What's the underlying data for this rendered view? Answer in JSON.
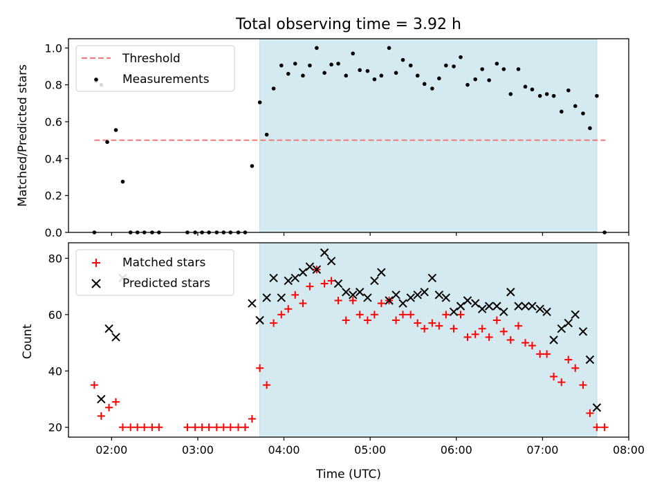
{
  "chart_data": [
    {
      "type": "scatter",
      "title": "Total observing time = 3.92 h",
      "xlabel": "",
      "ylabel": "Matched/Predicted stars",
      "xlim": [
        1.5,
        8.0
      ],
      "ylim": [
        0.0,
        1.05
      ],
      "x_unit": "hours UTC",
      "yticks": [
        0.0,
        0.2,
        0.4,
        0.6,
        0.8,
        1.0
      ],
      "ytick_labels": [
        "0.0",
        "0.2",
        "0.4",
        "0.6",
        "0.8",
        "1.0"
      ],
      "shaded_region": {
        "x": [
          3.72,
          7.63
        ],
        "color": "#d4eaf0"
      },
      "threshold": {
        "name": "Threshold",
        "y": 0.5,
        "x": [
          1.8,
          7.73
        ],
        "color": "#f08080",
        "style": "dashed"
      },
      "legend": [
        "Threshold",
        "Measurements"
      ],
      "legend_position": "upper left",
      "series": [
        {
          "name": "Measurements",
          "marker": "dot",
          "color": "#000000",
          "points": [
            [
              1.8,
              0.0
            ],
            [
              1.82,
              0.82
            ],
            [
              1.88,
              0.8
            ],
            [
              1.95,
              0.49
            ],
            [
              2.05,
              0.555
            ],
            [
              2.13,
              0.275
            ],
            [
              2.22,
              0.0
            ],
            [
              2.3,
              0.0
            ],
            [
              2.38,
              0.0
            ],
            [
              2.47,
              0.0
            ],
            [
              2.55,
              0.0
            ],
            [
              2.88,
              0.0
            ],
            [
              2.97,
              0.0
            ],
            [
              3.05,
              0.0
            ],
            [
              3.13,
              0.0
            ],
            [
              3.22,
              0.0
            ],
            [
              3.3,
              0.0
            ],
            [
              3.38,
              0.0
            ],
            [
              3.47,
              0.0
            ],
            [
              3.55,
              0.0
            ],
            [
              3.63,
              0.36
            ],
            [
              3.72,
              0.705
            ],
            [
              3.8,
              0.53
            ],
            [
              3.88,
              0.78
            ],
            [
              3.97,
              0.905
            ],
            [
              4.05,
              0.86
            ],
            [
              4.13,
              0.915
            ],
            [
              4.22,
              0.85
            ],
            [
              4.3,
              0.905
            ],
            [
              4.38,
              1.0
            ],
            [
              4.47,
              0.865
            ],
            [
              4.55,
              0.91
            ],
            [
              4.63,
              0.915
            ],
            [
              4.72,
              0.85
            ],
            [
              4.8,
              0.97
            ],
            [
              4.88,
              0.88
            ],
            [
              4.97,
              0.875
            ],
            [
              5.05,
              0.83
            ],
            [
              5.13,
              0.85
            ],
            [
              5.22,
              1.0
            ],
            [
              5.3,
              0.865
            ],
            [
              5.38,
              0.935
            ],
            [
              5.47,
              0.905
            ],
            [
              5.55,
              0.85
            ],
            [
              5.63,
              0.805
            ],
            [
              5.72,
              0.78
            ],
            [
              5.8,
              0.835
            ],
            [
              5.88,
              0.905
            ],
            [
              5.97,
              0.9
            ],
            [
              6.05,
              0.95
            ],
            [
              6.13,
              0.8
            ],
            [
              6.22,
              0.83
            ],
            [
              6.3,
              0.885
            ],
            [
              6.38,
              0.825
            ],
            [
              6.47,
              0.915
            ],
            [
              6.55,
              0.885
            ],
            [
              6.63,
              0.75
            ],
            [
              6.72,
              0.885
            ],
            [
              6.8,
              0.79
            ],
            [
              6.88,
              0.775
            ],
            [
              6.97,
              0.74
            ],
            [
              7.05,
              0.75
            ],
            [
              7.13,
              0.74
            ],
            [
              7.22,
              0.655
            ],
            [
              7.3,
              0.77
            ],
            [
              7.38,
              0.685
            ],
            [
              7.47,
              0.645
            ],
            [
              7.55,
              0.565
            ],
            [
              7.63,
              0.74
            ],
            [
              7.72,
              0.0
            ]
          ]
        }
      ]
    },
    {
      "type": "scatter",
      "title": "",
      "xlabel": "Time (UTC)",
      "ylabel": "Count",
      "xlim": [
        1.5,
        8.0
      ],
      "ylim": [
        16.5,
        85.5
      ],
      "x_unit": "hours UTC",
      "xticks": [
        2,
        3,
        4,
        5,
        6,
        7,
        8
      ],
      "xtick_labels": [
        "02:00",
        "03:00",
        "04:00",
        "05:00",
        "06:00",
        "07:00",
        "08:00"
      ],
      "yticks": [
        20,
        40,
        60,
        80
      ],
      "ytick_labels": [
        "20",
        "40",
        "60",
        "80"
      ],
      "shaded_region": {
        "x": [
          3.72,
          7.63
        ],
        "color": "#d4eaf0"
      },
      "legend": [
        "Matched stars",
        "Predicted stars"
      ],
      "legend_position": "upper left",
      "series": [
        {
          "name": "Matched stars",
          "marker": "plus",
          "color": "#ff0000",
          "points": [
            [
              1.8,
              35
            ],
            [
              1.88,
              24
            ],
            [
              1.97,
              27
            ],
            [
              2.05,
              29
            ],
            [
              2.13,
              20
            ],
            [
              2.22,
              20
            ],
            [
              2.3,
              20
            ],
            [
              2.38,
              20
            ],
            [
              2.47,
              20
            ],
            [
              2.55,
              20
            ],
            [
              2.88,
              20
            ],
            [
              2.97,
              20
            ],
            [
              3.05,
              20
            ],
            [
              3.13,
              20
            ],
            [
              3.22,
              20
            ],
            [
              3.3,
              20
            ],
            [
              3.38,
              20
            ],
            [
              3.47,
              20
            ],
            [
              3.55,
              20
            ],
            [
              3.63,
              23
            ],
            [
              3.72,
              41
            ],
            [
              3.8,
              35
            ],
            [
              3.88,
              57
            ],
            [
              3.97,
              60
            ],
            [
              4.05,
              62
            ],
            [
              4.13,
              67
            ],
            [
              4.22,
              64
            ],
            [
              4.3,
              70
            ],
            [
              4.38,
              76
            ],
            [
              4.47,
              71
            ],
            [
              4.55,
              72
            ],
            [
              4.63,
              65
            ],
            [
              4.72,
              58
            ],
            [
              4.8,
              65
            ],
            [
              4.88,
              60
            ],
            [
              4.97,
              58
            ],
            [
              5.05,
              60
            ],
            [
              5.13,
              64
            ],
            [
              5.22,
              65
            ],
            [
              5.3,
              58
            ],
            [
              5.38,
              60
            ],
            [
              5.47,
              60
            ],
            [
              5.55,
              57
            ],
            [
              5.63,
              55
            ],
            [
              5.72,
              57
            ],
            [
              5.8,
              56
            ],
            [
              5.88,
              60
            ],
            [
              5.97,
              55
            ],
            [
              6.05,
              60
            ],
            [
              6.13,
              52
            ],
            [
              6.22,
              53
            ],
            [
              6.3,
              55
            ],
            [
              6.38,
              52
            ],
            [
              6.47,
              58
            ],
            [
              6.55,
              54
            ],
            [
              6.63,
              51
            ],
            [
              6.72,
              56
            ],
            [
              6.8,
              50
            ],
            [
              6.88,
              49
            ],
            [
              6.97,
              46
            ],
            [
              7.05,
              46
            ],
            [
              7.13,
              38
            ],
            [
              7.22,
              36
            ],
            [
              7.3,
              44
            ],
            [
              7.38,
              41
            ],
            [
              7.47,
              35
            ],
            [
              7.55,
              25
            ],
            [
              7.63,
              20
            ],
            [
              7.72,
              20
            ]
          ]
        },
        {
          "name": "Predicted stars",
          "marker": "x",
          "color": "#000000",
          "points": [
            [
              1.88,
              30
            ],
            [
              1.97,
              55
            ],
            [
              2.05,
              52
            ],
            [
              2.13,
              73
            ],
            [
              3.63,
              64
            ],
            [
              3.72,
              58
            ],
            [
              3.8,
              66
            ],
            [
              3.88,
              73
            ],
            [
              3.97,
              66
            ],
            [
              4.05,
              72
            ],
            [
              4.13,
              73
            ],
            [
              4.22,
              75
            ],
            [
              4.3,
              77
            ],
            [
              4.38,
              76
            ],
            [
              4.47,
              82
            ],
            [
              4.55,
              79
            ],
            [
              4.63,
              71
            ],
            [
              4.72,
              68
            ],
            [
              4.8,
              67
            ],
            [
              4.88,
              68
            ],
            [
              4.97,
              66
            ],
            [
              5.05,
              72
            ],
            [
              5.13,
              75
            ],
            [
              5.22,
              65
            ],
            [
              5.3,
              67
            ],
            [
              5.38,
              64
            ],
            [
              5.47,
              66
            ],
            [
              5.55,
              67
            ],
            [
              5.63,
              68
            ],
            [
              5.72,
              73
            ],
            [
              5.8,
              67
            ],
            [
              5.88,
              66
            ],
            [
              5.97,
              61
            ],
            [
              6.05,
              63
            ],
            [
              6.13,
              65
            ],
            [
              6.22,
              64
            ],
            [
              6.3,
              62
            ],
            [
              6.38,
              63
            ],
            [
              6.47,
              63
            ],
            [
              6.55,
              61
            ],
            [
              6.63,
              68
            ],
            [
              6.72,
              63
            ],
            [
              6.8,
              63
            ],
            [
              6.88,
              63
            ],
            [
              6.97,
              62
            ],
            [
              7.05,
              61
            ],
            [
              7.13,
              51
            ],
            [
              7.22,
              55
            ],
            [
              7.3,
              57
            ],
            [
              7.38,
              60
            ],
            [
              7.47,
              54
            ],
            [
              7.55,
              44
            ],
            [
              7.63,
              27
            ]
          ]
        }
      ]
    }
  ]
}
